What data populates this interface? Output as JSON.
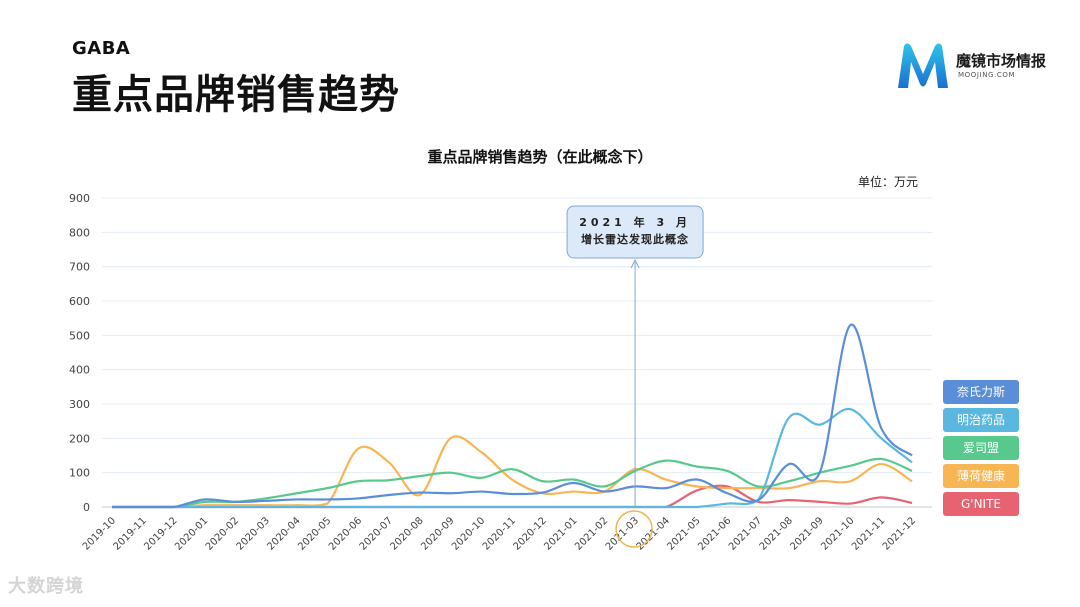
{
  "header": {
    "kicker": "GABA",
    "title": "重点品牌销售趋势"
  },
  "logo": {
    "name": "魔镜市场情报",
    "sub": "MOOJING.COM",
    "icon": "m-logo-icon"
  },
  "watermark": "大数跨境",
  "chart_data": {
    "type": "line",
    "title": "重点品牌销售趋势（在此概念下）",
    "unit_label": "单位：万元",
    "ylim": [
      0,
      900
    ],
    "yticks": [
      0,
      100,
      200,
      300,
      400,
      500,
      600,
      700,
      800,
      900
    ],
    "grid": true,
    "legend_position": "right",
    "categories": [
      "2019-10",
      "2019-11",
      "2019-12",
      "2020-01",
      "2020-02",
      "2020-03",
      "2020-04",
      "2020-05",
      "2020-06",
      "2020-07",
      "2020-08",
      "2020-09",
      "2020-10",
      "2020-11",
      "2020-12",
      "2021-01",
      "2021-02",
      "2021-03",
      "2021-04",
      "2021-05",
      "2021-06",
      "2021-07",
      "2021-08",
      "2021-09",
      "2021-10",
      "2021-11",
      "2021-12"
    ],
    "series": [
      {
        "name": "奈氏力斯",
        "color": "#5b8ed8",
        "values": [
          0,
          0,
          0,
          22,
          15,
          18,
          22,
          22,
          25,
          35,
          42,
          40,
          45,
          38,
          42,
          70,
          45,
          60,
          55,
          80,
          40,
          20,
          125,
          100,
          530,
          230,
          150
        ]
      },
      {
        "name": "明治药品",
        "color": "#59b7e0",
        "values": [
          0,
          0,
          0,
          0,
          0,
          0,
          0,
          0,
          0,
          0,
          0,
          0,
          0,
          0,
          0,
          0,
          0,
          0,
          0,
          0,
          10,
          20,
          260,
          240,
          285,
          200,
          130
        ]
      },
      {
        "name": "爱司盟",
        "color": "#58c98c",
        "values": [
          0,
          0,
          0,
          15,
          15,
          25,
          40,
          55,
          75,
          78,
          90,
          100,
          85,
          110,
          75,
          80,
          60,
          105,
          135,
          118,
          105,
          60,
          75,
          100,
          120,
          140,
          105
        ]
      },
      {
        "name": "薄荷健康",
        "color": "#f7b554",
        "values": [
          0,
          0,
          0,
          5,
          5,
          5,
          5,
          10,
          170,
          130,
          35,
          200,
          160,
          80,
          40,
          45,
          45,
          110,
          80,
          60,
          55,
          55,
          55,
          75,
          75,
          125,
          75
        ]
      },
      {
        "name": "G'NITE",
        "color": "#e86372",
        "values": [
          0,
          0,
          0,
          0,
          0,
          0,
          0,
          0,
          0,
          0,
          0,
          0,
          0,
          0,
          0,
          0,
          0,
          0,
          0,
          48,
          60,
          15,
          20,
          15,
          10,
          28,
          12
        ]
      }
    ],
    "annotation": {
      "lines": [
        "2021 年 3 月",
        "增长雷达发现此概念"
      ],
      "x": "2021-03"
    }
  }
}
